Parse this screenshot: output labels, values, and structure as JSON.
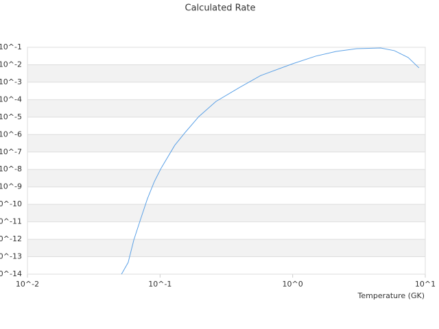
{
  "chart_data": {
    "type": "line",
    "title": "Calculated Rate",
    "x_label": "Temperature (GK)",
    "log_x": true,
    "log_y": true,
    "grid": true,
    "xlim": [
      0.01,
      10
    ],
    "ylim": [
      1e-14,
      0.1
    ],
    "xticks": [
      {
        "value": 0.01,
        "label": "10^-2"
      },
      {
        "value": 0.1,
        "label": "10^-1"
      },
      {
        "value": 1,
        "label": "10^0"
      },
      {
        "value": 10,
        "label": "10^1"
      }
    ],
    "yticks": [
      {
        "value": 1e-14,
        "label": "10^-14"
      },
      {
        "value": 1e-13,
        "label": "10^-13"
      },
      {
        "value": 1e-12,
        "label": "10^-12"
      },
      {
        "value": 1e-11,
        "label": "10^-11"
      },
      {
        "value": 1e-10,
        "label": "10^-10"
      },
      {
        "value": 1e-09,
        "label": "10^-9"
      },
      {
        "value": 1e-08,
        "label": "10^-8"
      },
      {
        "value": 1e-07,
        "label": "10^-7"
      },
      {
        "value": 1e-06,
        "label": "10^-6"
      },
      {
        "value": 1e-05,
        "label": "10^-5"
      },
      {
        "value": 0.0001,
        "label": "10^-4"
      },
      {
        "value": 0.001,
        "label": "10^-3"
      },
      {
        "value": 0.01,
        "label": "10^-2"
      },
      {
        "value": 0.1,
        "label": "10^-1"
      }
    ],
    "x": [
      0.0512,
      0.0575,
      0.0634,
      0.0713,
      0.0803,
      0.0905,
      0.102,
      0.129,
      0.155,
      0.196,
      0.264,
      0.401,
      0.574,
      1,
      1.49,
      2.13,
      3.04,
      4.61,
      5.85,
      7.43,
      8.97
    ],
    "series": [
      {
        "color": "#5aa0e6",
        "values": [
          1e-14,
          4.7e-14,
          9.1e-13,
          1.4e-11,
          2.1e-10,
          2e-09,
          1.2e-08,
          2.4e-07,
          1.35e-06,
          1.07e-05,
          7.9e-05,
          0.00052,
          0.0024,
          0.0114,
          0.031,
          0.058,
          0.083,
          0.091,
          0.064,
          0.026,
          0.0066
        ]
      }
    ]
  }
}
